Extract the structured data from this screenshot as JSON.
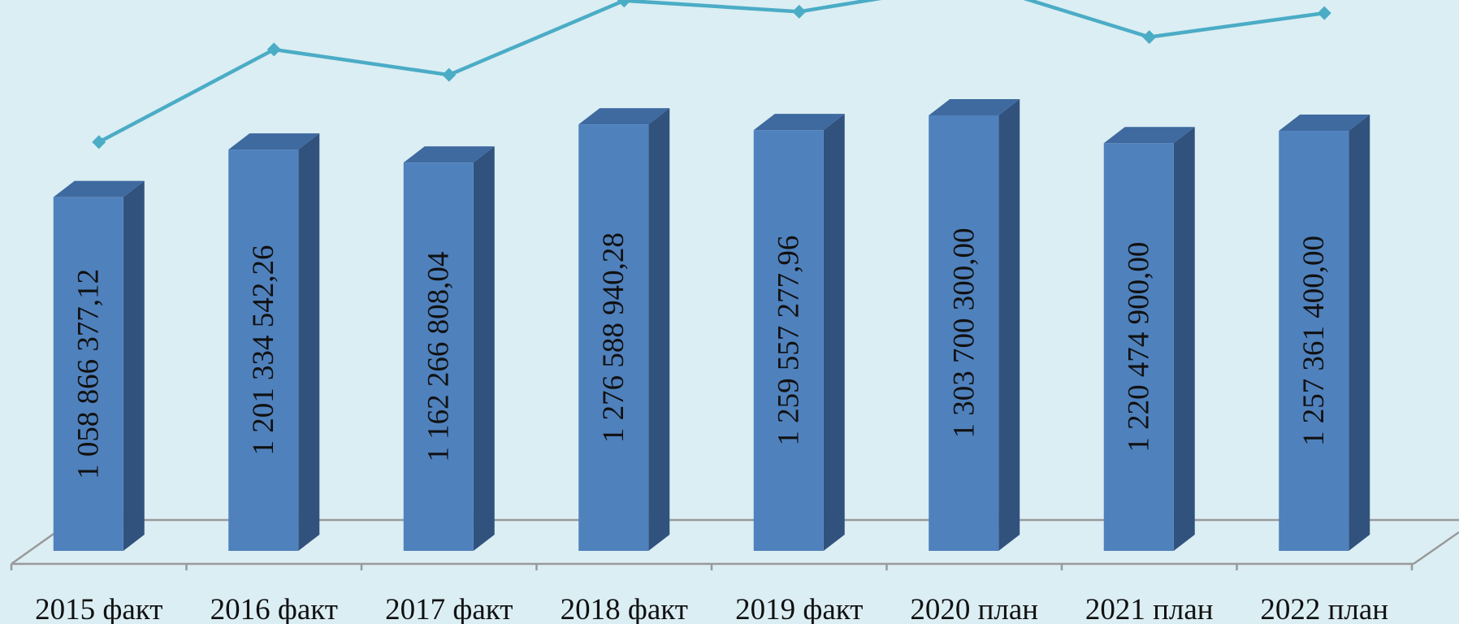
{
  "colors": {
    "background": "#dbeef3",
    "bar_front": "#4f81bd",
    "bar_side": "#31527d",
    "bar_top": "#3e6aa0",
    "line": "#4bacc6",
    "floor_line": "#999999"
  },
  "chart_data": {
    "type": "bar",
    "three_d": true,
    "categories": [
      "2015 факт",
      "2016 факт",
      "2017 факт",
      "2018 факт",
      "2019 факт",
      "2020 план",
      "2021 план",
      "2022 план"
    ],
    "series": [
      {
        "type": "bar",
        "values": [
          1058866377.12,
          1201334542.26,
          1162266808.04,
          1276588940.28,
          1259557277.96,
          1303700300.0,
          1220474900.0,
          1257361400.0
        ],
        "labels": [
          "1 058 866 377,12",
          "1 201 334 542,26",
          "1 162 266 808,04",
          "1 276 588 940,28",
          "1 259 557 277,96",
          "1 303 700 300,00",
          "1 220 474 900,00",
          "1 257 361 400,00"
        ]
      },
      {
        "type": "line",
        "marker": "diamond",
        "values": [
          1058866377.12,
          1201334542.26,
          1162266808.04,
          1276588940.28,
          1259557277.96,
          1303700300.0,
          1220474900.0,
          1257361400.0
        ]
      }
    ],
    "ylim": [
      0,
      1303700300.0
    ],
    "grid": false,
    "legend": "none"
  }
}
